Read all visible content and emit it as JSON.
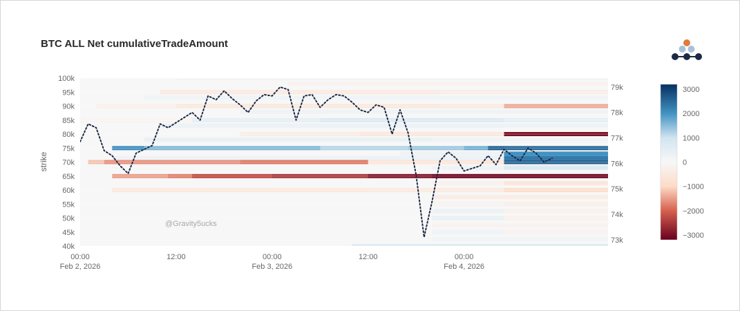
{
  "chart_data": {
    "type": "heatmap",
    "title": "BTC ALL Net cumulativeTradeAmount",
    "ylabel": "strike",
    "watermark": "@Gravity5ucks",
    "x_start": "2026-02-02T00:00",
    "x_end": "2026-02-04T18:00",
    "x_ticks": [
      {
        "t": "2026-02-02T00:00",
        "label": "00:00",
        "sublabel": "Feb 2, 2026"
      },
      {
        "t": "2026-02-02T12:00",
        "label": "12:00",
        "sublabel": ""
      },
      {
        "t": "2026-02-03T00:00",
        "label": "00:00",
        "sublabel": "Feb 3, 2026"
      },
      {
        "t": "2026-02-03T12:00",
        "label": "12:00",
        "sublabel": ""
      },
      {
        "t": "2026-02-04T00:00",
        "label": "00:00",
        "sublabel": "Feb 4, 2026"
      }
    ],
    "y_ticks": [
      {
        "v": 40000,
        "label": "40k"
      },
      {
        "v": 45000,
        "label": "45k"
      },
      {
        "v": 50000,
        "label": "50k"
      },
      {
        "v": 55000,
        "label": "55k"
      },
      {
        "v": 60000,
        "label": "60k"
      },
      {
        "v": 65000,
        "label": "65k"
      },
      {
        "v": 70000,
        "label": "70k"
      },
      {
        "v": 75000,
        "label": "75k"
      },
      {
        "v": 80000,
        "label": "80k"
      },
      {
        "v": 85000,
        "label": "85k"
      },
      {
        "v": 90000,
        "label": "90k"
      },
      {
        "v": 95000,
        "label": "95k"
      },
      {
        "v": 100000,
        "label": "100k"
      }
    ],
    "ylim": [
      40000,
      100000
    ],
    "y2_ticks": [
      {
        "v": 73000,
        "label": "73k"
      },
      {
        "v": 74000,
        "label": "74k"
      },
      {
        "v": 75000,
        "label": "75k"
      },
      {
        "v": 76000,
        "label": "76k"
      },
      {
        "v": 77000,
        "label": "77k"
      },
      {
        "v": 78000,
        "label": "78k"
      },
      {
        "v": 79000,
        "label": "79k"
      }
    ],
    "y2lim": [
      72750,
      79350
    ],
    "colorscale": {
      "range": [
        -3200,
        3200
      ],
      "stops": [
        {
          "v": -3200,
          "color": "#67001f"
        },
        {
          "v": -2000,
          "color": "#d6604d"
        },
        {
          "v": -1000,
          "color": "#fddbc7"
        },
        {
          "v": 0,
          "color": "#f7f7f7"
        },
        {
          "v": 1000,
          "color": "#d1e5f0"
        },
        {
          "v": 2000,
          "color": "#4393c3"
        },
        {
          "v": 3200,
          "color": "#053061"
        }
      ],
      "ticks": [
        {
          "v": 3000,
          "label": "3000"
        },
        {
          "v": 2000,
          "label": "2000"
        },
        {
          "v": 1000,
          "label": "1000"
        },
        {
          "v": 0,
          "label": "0"
        },
        {
          "v": -1000,
          "label": "−1000"
        },
        {
          "v": -2000,
          "label": "−2000"
        },
        {
          "v": -3000,
          "label": "−3000"
        }
      ]
    },
    "heatmap_rows": [
      {
        "strike": 100000,
        "segments": [
          [
            0,
            12,
            0
          ],
          [
            12,
            66,
            150
          ]
        ]
      },
      {
        "strike": 98000,
        "segments": [
          [
            0,
            26,
            0
          ],
          [
            26,
            66,
            -150
          ]
        ]
      },
      {
        "strike": 95000,
        "segments": [
          [
            0,
            10,
            0
          ],
          [
            10,
            45,
            -450
          ],
          [
            45,
            66,
            -350
          ]
        ]
      },
      {
        "strike": 93000,
        "segments": [
          [
            0,
            8,
            0
          ],
          [
            8,
            66,
            150
          ]
        ]
      },
      {
        "strike": 90000,
        "segments": [
          [
            0,
            2,
            0
          ],
          [
            2,
            12,
            -250
          ],
          [
            12,
            45,
            -550
          ],
          [
            45,
            53,
            -450
          ],
          [
            53,
            66,
            -1400
          ]
        ]
      },
      {
        "strike": 88000,
        "segments": [
          [
            0,
            20,
            0
          ],
          [
            20,
            66,
            200
          ]
        ]
      },
      {
        "strike": 85000,
        "segments": [
          [
            0,
            14,
            -100
          ],
          [
            14,
            30,
            450
          ],
          [
            30,
            53,
            700
          ],
          [
            53,
            66,
            500
          ]
        ]
      },
      {
        "strike": 83000,
        "segments": [
          [
            0,
            10,
            0
          ],
          [
            10,
            53,
            300
          ],
          [
            53,
            66,
            250
          ]
        ]
      },
      {
        "strike": 80000,
        "segments": [
          [
            0,
            20,
            0
          ],
          [
            20,
            35,
            -350
          ],
          [
            35,
            53,
            -550
          ],
          [
            53,
            66,
            -3000
          ]
        ]
      },
      {
        "strike": 78000,
        "segments": [
          [
            0,
            8,
            0
          ],
          [
            8,
            44,
            350
          ],
          [
            44,
            53,
            200
          ],
          [
            53,
            66,
            150
          ]
        ]
      },
      {
        "strike": 75000,
        "segments": [
          [
            0,
            4,
            0
          ],
          [
            4,
            8,
            2050
          ],
          [
            8,
            30,
            1550
          ],
          [
            30,
            41,
            1200
          ],
          [
            41,
            48,
            1350
          ],
          [
            48,
            51,
            1650
          ],
          [
            51,
            53,
            2600
          ],
          [
            53,
            66,
            2500
          ]
        ]
      },
      {
        "strike": 73000,
        "segments": [
          [
            0,
            40,
            0
          ],
          [
            40,
            53,
            200
          ],
          [
            53,
            66,
            2000
          ]
        ]
      },
      {
        "strike": 71500,
        "segments": [
          [
            0,
            4,
            0
          ],
          [
            4,
            35,
            200
          ],
          [
            35,
            53,
            300
          ],
          [
            53,
            66,
            2300
          ]
        ]
      },
      {
        "strike": 70000,
        "segments": [
          [
            0,
            1,
            0
          ],
          [
            1,
            3,
            -1200
          ],
          [
            3,
            20,
            -1600
          ],
          [
            20,
            36,
            -1800
          ],
          [
            36,
            53,
            -600
          ],
          [
            53,
            66,
            2600
          ]
        ]
      },
      {
        "strike": 68000,
        "segments": [
          [
            0,
            44,
            0
          ],
          [
            44,
            53,
            200
          ],
          [
            53,
            66,
            700
          ]
        ]
      },
      {
        "strike": 65000,
        "segments": [
          [
            0,
            4,
            0
          ],
          [
            4,
            11,
            -1500
          ],
          [
            11,
            14,
            -1750
          ],
          [
            14,
            24,
            -2250
          ],
          [
            24,
            36,
            -2500
          ],
          [
            36,
            44,
            -2900
          ],
          [
            44,
            66,
            -3100
          ]
        ]
      },
      {
        "strike": 62500,
        "segments": [
          [
            0,
            44,
            0
          ],
          [
            44,
            53,
            -200
          ],
          [
            53,
            66,
            -600
          ]
        ]
      },
      {
        "strike": 60000,
        "segments": [
          [
            0,
            4,
            0
          ],
          [
            4,
            36,
            -550
          ],
          [
            36,
            53,
            -450
          ],
          [
            53,
            66,
            -900
          ]
        ]
      },
      {
        "strike": 57500,
        "segments": [
          [
            0,
            44,
            0
          ],
          [
            44,
            66,
            -350
          ]
        ]
      },
      {
        "strike": 55000,
        "segments": [
          [
            0,
            44,
            0
          ],
          [
            44,
            53,
            -150
          ],
          [
            53,
            66,
            -300
          ]
        ]
      },
      {
        "strike": 52500,
        "segments": [
          [
            0,
            44,
            0
          ],
          [
            44,
            53,
            300
          ],
          [
            53,
            66,
            -200
          ]
        ]
      },
      {
        "strike": 50000,
        "segments": [
          [
            0,
            44,
            0
          ],
          [
            44,
            53,
            400
          ],
          [
            53,
            66,
            -250
          ]
        ]
      },
      {
        "strike": 47500,
        "segments": [
          [
            0,
            44,
            0
          ],
          [
            44,
            66,
            -150
          ]
        ]
      },
      {
        "strike": 45000,
        "segments": [
          [
            0,
            44,
            0
          ],
          [
            44,
            53,
            200
          ],
          [
            53,
            66,
            -150
          ]
        ]
      },
      {
        "strike": 42500,
        "segments": [
          [
            0,
            44,
            0
          ],
          [
            44,
            66,
            120
          ]
        ]
      },
      {
        "strike": 40000,
        "segments": [
          [
            0,
            34,
            0
          ],
          [
            34,
            66,
            650
          ]
        ]
      }
    ],
    "price_series": {
      "style": "dotted",
      "color": "#1e2a44",
      "points": [
        [
          0,
          76850
        ],
        [
          1,
          77550
        ],
        [
          2,
          77400
        ],
        [
          3,
          76500
        ],
        [
          4,
          76300
        ],
        [
          5,
          75900
        ],
        [
          6,
          75600
        ],
        [
          7,
          76400
        ],
        [
          8,
          76550
        ],
        [
          9,
          76700
        ],
        [
          10,
          77550
        ],
        [
          11,
          77400
        ],
        [
          12,
          77600
        ],
        [
          13,
          77800
        ],
        [
          14,
          78000
        ],
        [
          15,
          77700
        ],
        [
          16,
          78650
        ],
        [
          17,
          78500
        ],
        [
          18,
          78850
        ],
        [
          19,
          78550
        ],
        [
          20,
          78300
        ],
        [
          21,
          78000
        ],
        [
          22,
          78450
        ],
        [
          23,
          78700
        ],
        [
          24,
          78650
        ],
        [
          25,
          79000
        ],
        [
          26,
          78900
        ],
        [
          27,
          77700
        ],
        [
          28,
          78650
        ],
        [
          29,
          78700
        ],
        [
          30,
          78200
        ],
        [
          31,
          78500
        ],
        [
          32,
          78700
        ],
        [
          33,
          78650
        ],
        [
          34,
          78400
        ],
        [
          35,
          78100
        ],
        [
          36,
          78000
        ],
        [
          37,
          78300
        ],
        [
          38,
          78200
        ],
        [
          39,
          77150
        ],
        [
          40,
          78100
        ],
        [
          41,
          77200
        ],
        [
          42,
          75550
        ],
        [
          43,
          73100
        ],
        [
          44,
          74500
        ],
        [
          45,
          76100
        ],
        [
          46,
          76450
        ],
        [
          47,
          76200
        ],
        [
          48,
          75700
        ],
        [
          49,
          75800
        ],
        [
          50,
          75900
        ],
        [
          51,
          76300
        ],
        [
          52,
          75950
        ],
        [
          53,
          76550
        ],
        [
          54,
          76300
        ],
        [
          55,
          76100
        ],
        [
          56,
          76600
        ],
        [
          57,
          76400
        ],
        [
          58,
          76050
        ],
        [
          59,
          76200
        ]
      ]
    }
  }
}
